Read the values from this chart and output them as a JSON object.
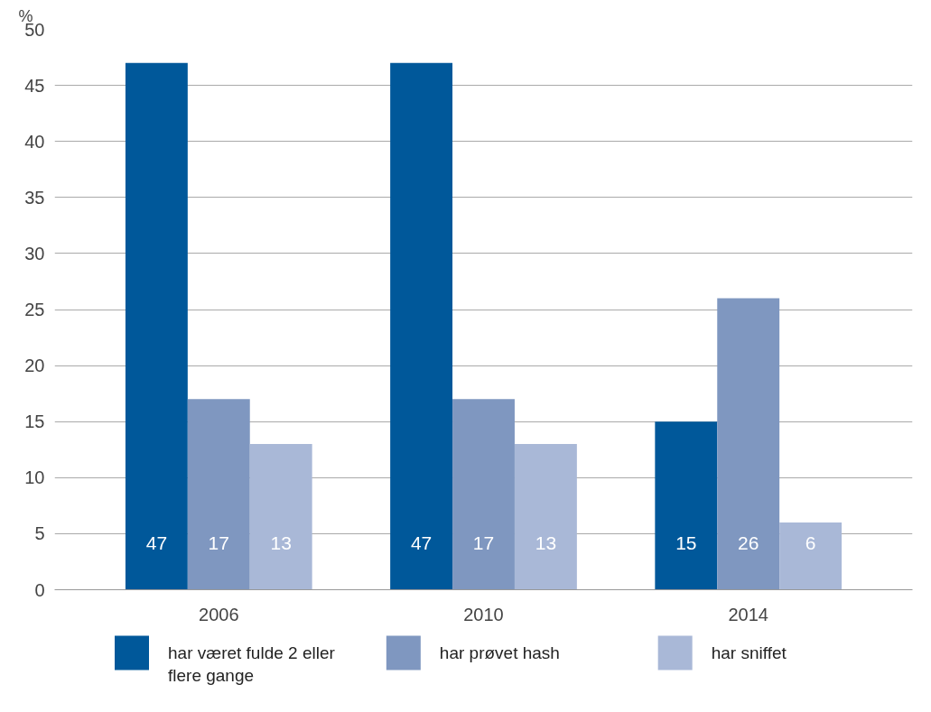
{
  "chart_data": {
    "type": "bar",
    "ylabel": "%",
    "categories": [
      "2006",
      "2010",
      "2014"
    ],
    "series": [
      {
        "name": "har været fulde 2 eller flere gange",
        "color": "#00589a",
        "values": [
          47,
          47,
          15
        ]
      },
      {
        "name": "har prøvet hash",
        "color": "#7f97c0",
        "values": [
          17,
          17,
          26
        ]
      },
      {
        "name": "har sniffet",
        "color": "#a9b8d7",
        "values": [
          13,
          13,
          6
        ]
      }
    ],
    "data_labels": true,
    "ylim": [
      0,
      50
    ],
    "yticks": [
      0,
      5,
      10,
      15,
      20,
      25,
      30,
      35,
      40,
      45,
      50
    ],
    "grid": "y",
    "legend": "bottom"
  }
}
